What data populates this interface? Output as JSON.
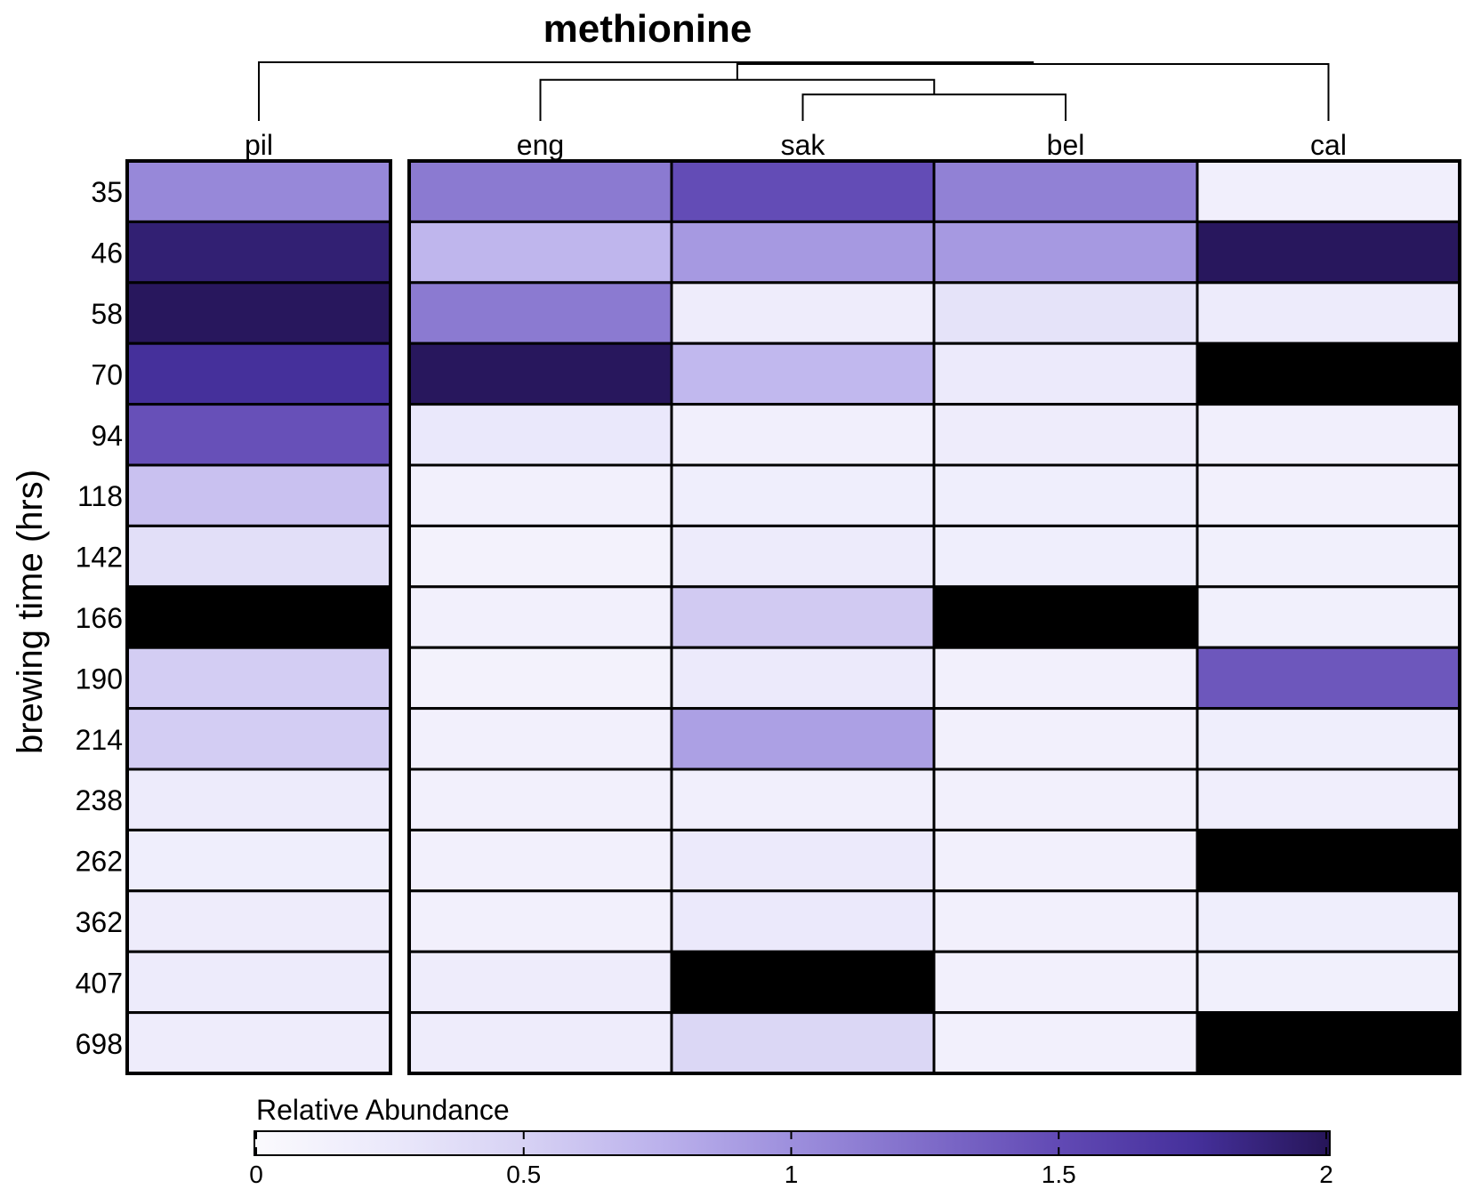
{
  "chart_data": {
    "type": "heatmap",
    "title": "methionine",
    "ylabel": "brewing time (hrs)",
    "colorbar_label": "Relative Abundance",
    "colorbar_range": [
      0,
      2
    ],
    "colorbar_ticks": [
      "0",
      "0.5",
      "1",
      "1.5",
      "2"
    ],
    "color_scale": [
      "#fbfafd",
      "#ebe9fb",
      "#d7d2f4",
      "#bcb2ec",
      "#9d8fdd",
      "#7f6cc9",
      "#6149b4",
      "#45309b",
      "#261558"
    ],
    "overflow_color": "#000000",
    "overflow_note": "",
    "columns": [
      "pil",
      "eng",
      "sak",
      "bel",
      "cal"
    ],
    "rows": [
      "35",
      "46",
      "58",
      "70",
      "94",
      "118",
      "142",
      "166",
      "190",
      "214",
      "238",
      "262",
      "362",
      "407",
      "698"
    ],
    "values": [
      [
        1.05,
        1.15,
        1.48,
        1.1,
        0.16
      ],
      [
        1.9,
        0.72,
        0.93,
        0.93,
        1.98
      ],
      [
        1.98,
        1.15,
        0.2,
        0.32,
        0.22
      ],
      [
        1.75,
        1.98,
        0.7,
        0.24,
        2.5
      ],
      [
        1.45,
        0.26,
        0.16,
        0.2,
        0.16
      ],
      [
        0.63,
        0.14,
        0.18,
        0.18,
        0.14
      ],
      [
        0.36,
        0.12,
        0.22,
        0.18,
        0.15
      ],
      [
        2.5,
        0.14,
        0.56,
        2.5,
        0.15
      ],
      [
        0.54,
        0.12,
        0.24,
        0.14,
        1.4
      ],
      [
        0.54,
        0.14,
        0.88,
        0.14,
        0.18
      ],
      [
        0.22,
        0.14,
        0.16,
        0.14,
        0.17
      ],
      [
        0.18,
        0.14,
        0.24,
        0.14,
        2.5
      ],
      [
        0.2,
        0.14,
        0.25,
        0.14,
        0.18
      ],
      [
        0.22,
        0.2,
        2.5,
        0.14,
        0.15
      ],
      [
        0.2,
        0.2,
        0.45,
        0.14,
        2.5
      ]
    ],
    "dendrogram": {
      "leaves": [
        "pil",
        "eng",
        "sak",
        "bel",
        "cal"
      ],
      "merges": [
        [
          2,
          3,
          0.45
        ],
        [
          1,
          5,
          0.7
        ],
        [
          6,
          4,
          0.97
        ],
        [
          0,
          7,
          1.0
        ]
      ]
    }
  }
}
